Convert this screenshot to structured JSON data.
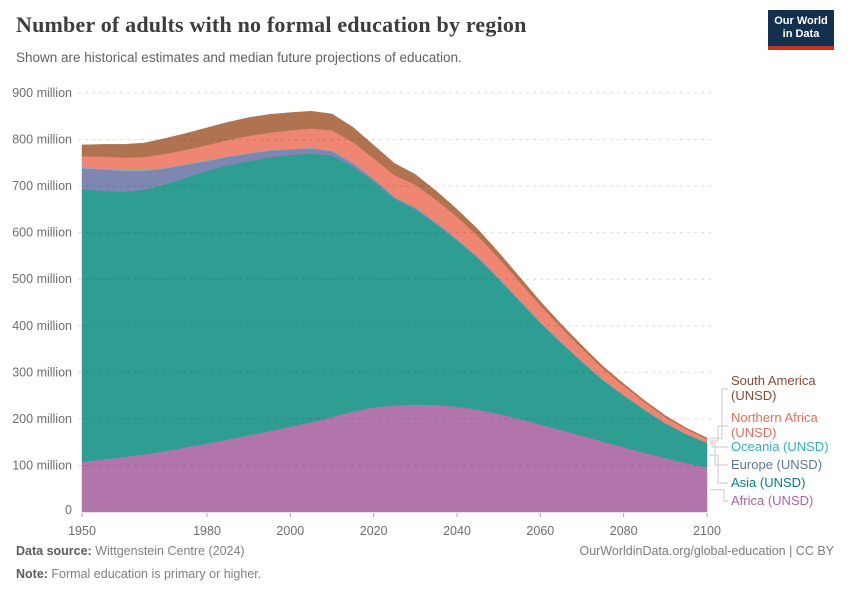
{
  "header": {
    "title": "Number of adults with no formal education by region",
    "subtitle": "Shown are historical estimates and median future projections of education.",
    "logo": {
      "line1": "Our World",
      "line2": "in Data"
    }
  },
  "chart_data": {
    "type": "area",
    "stacked": true,
    "title": "Number of adults with no formal education by region",
    "unit": "million",
    "x": [
      1950,
      1955,
      1960,
      1965,
      1970,
      1975,
      1980,
      1985,
      1990,
      1995,
      2000,
      2005,
      2010,
      2015,
      2020,
      2025,
      2030,
      2035,
      2040,
      2045,
      2050,
      2055,
      2060,
      2065,
      2070,
      2075,
      2080,
      2085,
      2090,
      2095,
      2100
    ],
    "series": [
      {
        "id": "africa",
        "label": "Africa (UNSD)",
        "fill_color": "#b175ac",
        "legend_color": "#ad62a6",
        "values": [
          108,
          113,
          118,
          124,
          131,
          139,
          147,
          156,
          165,
          174,
          183,
          193,
          204,
          216,
          225,
          229,
          231,
          230,
          226,
          220,
          211,
          200,
          188,
          176,
          164,
          151,
          139,
          127,
          116,
          105,
          96
        ]
      },
      {
        "id": "asia",
        "label": "Asia (UNSD)",
        "fill_color": "#2f9e92",
        "legend_color": "#00847e",
        "values": [
          585,
          577,
          570,
          568,
          573,
          580,
          586,
          589,
          589,
          588,
          584,
          577,
          562,
          526,
          485,
          443,
          419,
          388,
          357,
          325,
          289,
          253,
          218,
          187,
          158,
          132,
          111,
          92,
          74,
          62,
          52
        ]
      },
      {
        "id": "europe",
        "label": "Europe (UNSD)",
        "fill_color": "#7d87b2",
        "legend_color": "#5c76a8",
        "values": [
          45,
          46,
          45,
          41,
          34,
          27,
          21,
          18,
          16,
          14,
          12,
          11,
          9,
          7,
          5,
          4,
          3.5,
          3,
          2.5,
          2,
          2,
          1.5,
          1.5,
          1,
          1,
          1,
          1,
          0.8,
          0.7,
          0.6,
          0.5
        ]
      },
      {
        "id": "oceania",
        "label": "Oceania (UNSD)",
        "fill_color": "#5fbec9",
        "legend_color": "#2fb1c0",
        "values": [
          1.5,
          1.5,
          1.5,
          1.5,
          1.4,
          1.3,
          1.2,
          1.1,
          1.1,
          1,
          1,
          1,
          0.9,
          0.8,
          0.8,
          0.7,
          0.7,
          0.6,
          0.6,
          0.5,
          0.5,
          0.5,
          0.4,
          0.4,
          0.4,
          0.3,
          0.3,
          0.3,
          0.3,
          0.2,
          0.2
        ]
      },
      {
        "id": "northern_africa",
        "label": "Northern Africa (UNSD)",
        "fill_color": "#ee8672",
        "legend_color": "#e56e5a",
        "values": [
          25,
          26,
          27,
          28,
          30,
          31,
          33,
          35,
          37,
          38,
          40,
          42,
          44,
          45,
          44,
          47,
          49,
          49,
          48,
          46,
          43,
          40,
          36,
          32,
          28,
          24,
          20,
          16,
          13,
          10,
          8
        ]
      },
      {
        "id": "south_america",
        "label": "South America (UNSD)",
        "fill_color": "#b0734f",
        "legend_color": "#8a4a2f",
        "values": [
          24,
          26,
          28,
          30,
          33,
          35,
          37,
          38,
          39,
          39,
          38,
          37,
          35,
          32,
          28,
          25,
          22,
          19,
          16,
          14,
          12,
          10,
          8.5,
          7,
          6,
          5,
          4,
          3.5,
          3,
          2.7,
          2.5
        ]
      }
    ],
    "legend_order_top_to_bottom": [
      "south_america",
      "northern_africa",
      "oceania",
      "europe",
      "asia",
      "africa"
    ],
    "yaxis": {
      "min": 0,
      "max": 900,
      "grid": true,
      "ticks": [
        {
          "value": 0,
          "label": "0"
        },
        {
          "value": 100,
          "label": "100 million"
        },
        {
          "value": 200,
          "label": "200 million"
        },
        {
          "value": 300,
          "label": "300 million"
        },
        {
          "value": 400,
          "label": "400 million"
        },
        {
          "value": 500,
          "label": "500 million"
        },
        {
          "value": 600,
          "label": "600 million"
        },
        {
          "value": 700,
          "label": "700 million"
        },
        {
          "value": 800,
          "label": "800 million"
        },
        {
          "value": 900,
          "label": "900 million"
        }
      ]
    },
    "xaxis": {
      "min": 1950,
      "max": 2100,
      "ticks": [
        1950,
        1980,
        2000,
        2020,
        2040,
        2060,
        2080,
        2100
      ]
    },
    "legend_position": "right"
  },
  "footer": {
    "datasource_label": "Data source:",
    "datasource_value": " Wittgenstein Centre (2024)",
    "note_label": "Note:",
    "note_value": " Formal education is primary or higher.",
    "link": "OurWorldinData.org/global-education | CC BY"
  }
}
